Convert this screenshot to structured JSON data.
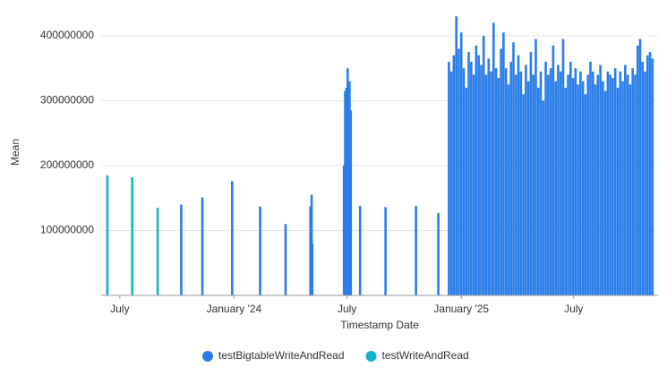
{
  "chart_data": {
    "type": "bar",
    "x_label": "Timestamp Date",
    "y_label": "Mean",
    "xlim": [
      "2023-06-01",
      "2025-11-11"
    ],
    "xticks": [
      {
        "value": "2023-07-01",
        "label": "July"
      },
      {
        "value": "2024-01-01",
        "label": "January '24"
      },
      {
        "value": "2024-07-01",
        "label": "July"
      },
      {
        "value": "2025-01-01",
        "label": "January '25"
      },
      {
        "value": "2025-07-01",
        "label": "July"
      }
    ],
    "ylim": [
      0,
      440000000
    ],
    "yticks": [
      100000000,
      200000000,
      300000000,
      400000000
    ],
    "grid": true,
    "legend": "bottom",
    "series": [
      {
        "name": "testBigtableWriteAndRead",
        "color": "#2b7de9",
        "x": [
          "2023-10-08",
          "2023-11-11",
          "2023-12-29",
          "2024-02-12",
          "2024-03-24",
          "2024-05-03",
          "2024-05-04",
          "2024-05-05",
          "2024-05-06",
          "2024-06-26",
          "2024-06-28",
          "2024-06-30",
          "2024-07-02",
          "2024-07-03",
          "2024-07-05",
          "2024-07-07",
          "2024-07-22",
          "2024-09-01",
          "2024-10-20",
          "2024-11-25",
          "2024-12-12",
          "2024-12-16",
          "2024-12-20",
          "2024-12-24",
          "2024-12-28",
          "2025-01-01",
          "2025-01-05",
          "2025-01-09",
          "2025-01-13",
          "2025-01-17",
          "2025-01-21",
          "2025-01-25",
          "2025-01-29",
          "2025-02-02",
          "2025-02-06",
          "2025-02-10",
          "2025-02-14",
          "2025-02-18",
          "2025-02-22",
          "2025-02-26",
          "2025-03-02",
          "2025-03-06",
          "2025-03-10",
          "2025-03-14",
          "2025-03-18",
          "2025-03-22",
          "2025-03-26",
          "2025-03-30",
          "2025-04-03",
          "2025-04-07",
          "2025-04-11",
          "2025-04-15",
          "2025-04-19",
          "2025-04-23",
          "2025-04-27",
          "2025-05-01",
          "2025-05-05",
          "2025-05-09",
          "2025-05-13",
          "2025-05-17",
          "2025-05-21",
          "2025-05-25",
          "2025-05-29",
          "2025-06-02",
          "2025-06-06",
          "2025-06-10",
          "2025-06-14",
          "2025-06-18",
          "2025-06-22",
          "2025-06-26",
          "2025-06-30",
          "2025-07-04",
          "2025-07-08",
          "2025-07-12",
          "2025-07-16",
          "2025-07-20",
          "2025-07-24",
          "2025-07-28",
          "2025-08-01",
          "2025-08-05",
          "2025-08-09",
          "2025-08-13",
          "2025-08-17",
          "2025-08-21",
          "2025-08-25",
          "2025-08-29",
          "2025-09-02",
          "2025-09-06",
          "2025-09-10",
          "2025-09-14",
          "2025-09-18",
          "2025-09-22",
          "2025-09-26",
          "2025-09-30",
          "2025-10-04",
          "2025-10-08",
          "2025-10-12",
          "2025-10-16",
          "2025-10-20",
          "2025-10-24",
          "2025-10-28",
          "2025-11-01",
          "2025-11-05"
        ],
        "values": [
          140000000,
          151000000,
          176000000,
          137000000,
          110000000,
          137000000,
          88000000,
          155000000,
          80000000,
          200000000,
          315000000,
          320000000,
          350000000,
          290000000,
          330000000,
          285000000,
          138000000,
          136000000,
          138000000,
          127000000,
          360000000,
          345000000,
          370000000,
          430000000,
          380000000,
          405000000,
          350000000,
          320000000,
          375000000,
          360000000,
          340000000,
          385000000,
          370000000,
          355000000,
          400000000,
          340000000,
          365000000,
          345000000,
          420000000,
          350000000,
          335000000,
          380000000,
          405000000,
          350000000,
          325000000,
          360000000,
          390000000,
          340000000,
          370000000,
          345000000,
          310000000,
          355000000,
          330000000,
          375000000,
          340000000,
          395000000,
          320000000,
          345000000,
          300000000,
          360000000,
          340000000,
          350000000,
          385000000,
          330000000,
          355000000,
          345000000,
          395000000,
          320000000,
          340000000,
          360000000,
          335000000,
          350000000,
          325000000,
          345000000,
          330000000,
          310000000,
          340000000,
          360000000,
          345000000,
          325000000,
          340000000,
          355000000,
          330000000,
          315000000,
          345000000,
          340000000,
          335000000,
          350000000,
          320000000,
          345000000,
          330000000,
          355000000,
          340000000,
          325000000,
          350000000,
          340000000,
          385000000,
          395000000,
          360000000,
          345000000,
          370000000,
          375000000,
          365000000
        ]
      },
      {
        "name": "testWriteAndRead",
        "color": "#12b5cb",
        "x": [
          "2023-06-11",
          "2023-07-21",
          "2023-08-31"
        ],
        "values": [
          185000000,
          182000000,
          135000000
        ]
      }
    ]
  }
}
